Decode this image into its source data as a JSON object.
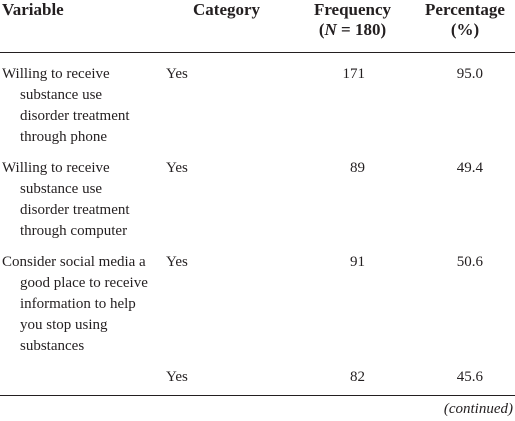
{
  "table": {
    "header": [
      [
        "Variable"
      ],
      [
        "Category"
      ],
      [
        "Frequency",
        "(N = 180)"
      ],
      [
        "Percentage",
        "(%)"
      ]
    ],
    "rows": [
      {
        "variable": [
          "Willing to receive",
          "substance use",
          "disorder treatment",
          "through phone"
        ],
        "category": "Yes",
        "frequency": "171",
        "percentage": "95.0"
      },
      {
        "variable": [
          "Willing to receive",
          "substance use",
          "disorder treatment",
          "through computer"
        ],
        "category": "Yes",
        "frequency": "89",
        "percentage": "49.4"
      },
      {
        "variable": [
          "Consider social media a",
          "good place to receive",
          "information to help",
          "you stop using",
          "substances"
        ],
        "category": "Yes",
        "frequency": "91",
        "percentage": "50.6"
      },
      {
        "variable": null,
        "category": "Yes",
        "frequency": "82",
        "percentage": "45.6"
      }
    ],
    "footer": "(continued)"
  }
}
